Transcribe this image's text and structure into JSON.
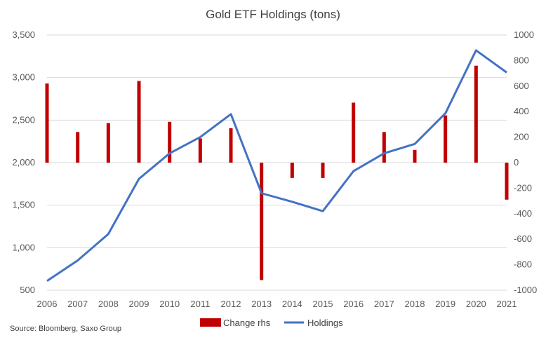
{
  "chart_data": {
    "type": "bar+line",
    "title": "Gold ETF Holdings (tons)",
    "source": "Source: Bloomberg, Saxo Group",
    "categories": [
      "2006",
      "2007",
      "2008",
      "2009",
      "2010",
      "2011",
      "2012",
      "2013",
      "2014",
      "2015",
      "2016",
      "2017",
      "2018",
      "2019",
      "2020",
      "2021"
    ],
    "left_axis": {
      "range": [
        500,
        3500
      ],
      "ticks": [
        "500",
        "1,000",
        "1,500",
        "2,000",
        "2,500",
        "3,000",
        "3,500"
      ],
      "tick_values": [
        500,
        1000,
        1500,
        2000,
        2500,
        3000,
        3500
      ]
    },
    "right_axis": {
      "range": [
        -1000,
        1000
      ],
      "ticks": [
        "-1000",
        "-800",
        "-600",
        "-400",
        "-200",
        "0",
        "200",
        "400",
        "600",
        "800",
        "1000"
      ],
      "tick_values": [
        -1000,
        -800,
        -600,
        -400,
        -200,
        0,
        200,
        400,
        600,
        800,
        1000
      ]
    },
    "grid": true,
    "legend_position": "bottom",
    "series": [
      {
        "name": "Change rhs",
        "kind": "bar",
        "axis": "right",
        "color": "#c00000",
        "values": [
          620,
          240,
          310,
          640,
          320,
          190,
          270,
          -920,
          -120,
          -120,
          470,
          240,
          100,
          370,
          760,
          -290
        ]
      },
      {
        "name": "Holdings",
        "kind": "line",
        "axis": "left",
        "color": "#4472c4",
        "values": [
          610,
          850,
          1160,
          1810,
          2110,
          2300,
          2570,
          1640,
          1540,
          1430,
          1900,
          2110,
          2220,
          2580,
          3320,
          3060
        ]
      }
    ]
  }
}
